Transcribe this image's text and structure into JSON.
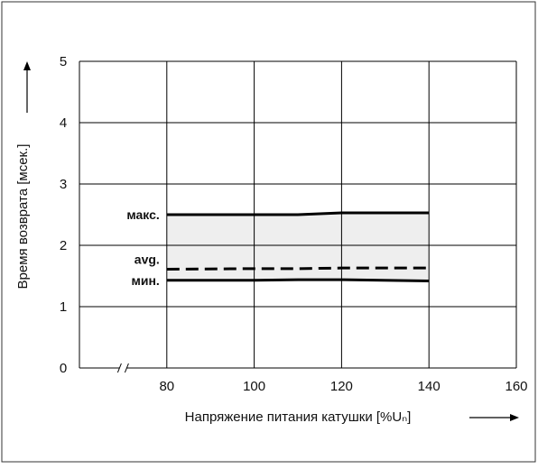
{
  "chart_data": {
    "type": "line",
    "xlabel": "Напряжение питания катушки [%Uₙ]",
    "ylabel": "Время возврата [мсек.]",
    "x": [
      80,
      100,
      110,
      120,
      140
    ],
    "series": [
      {
        "name": "макс.",
        "color": "#000000",
        "dash": false,
        "values": [
          2.5,
          2.5,
          2.5,
          2.53,
          2.53
        ]
      },
      {
        "name": "avg.",
        "color": "#000000",
        "dash": true,
        "values": [
          1.61,
          1.62,
          1.62,
          1.63,
          1.63
        ]
      },
      {
        "name": "мин.",
        "color": "#000000",
        "dash": false,
        "values": [
          1.43,
          1.43,
          1.44,
          1.44,
          1.42
        ]
      }
    ],
    "band_color": "#eeeeee",
    "xlim": [
      60,
      160
    ],
    "xticks": [
      80,
      100,
      120,
      140,
      160
    ],
    "ylim": [
      0,
      5
    ],
    "yticks": [
      0,
      1,
      2,
      3,
      4,
      5
    ],
    "grid": true
  }
}
